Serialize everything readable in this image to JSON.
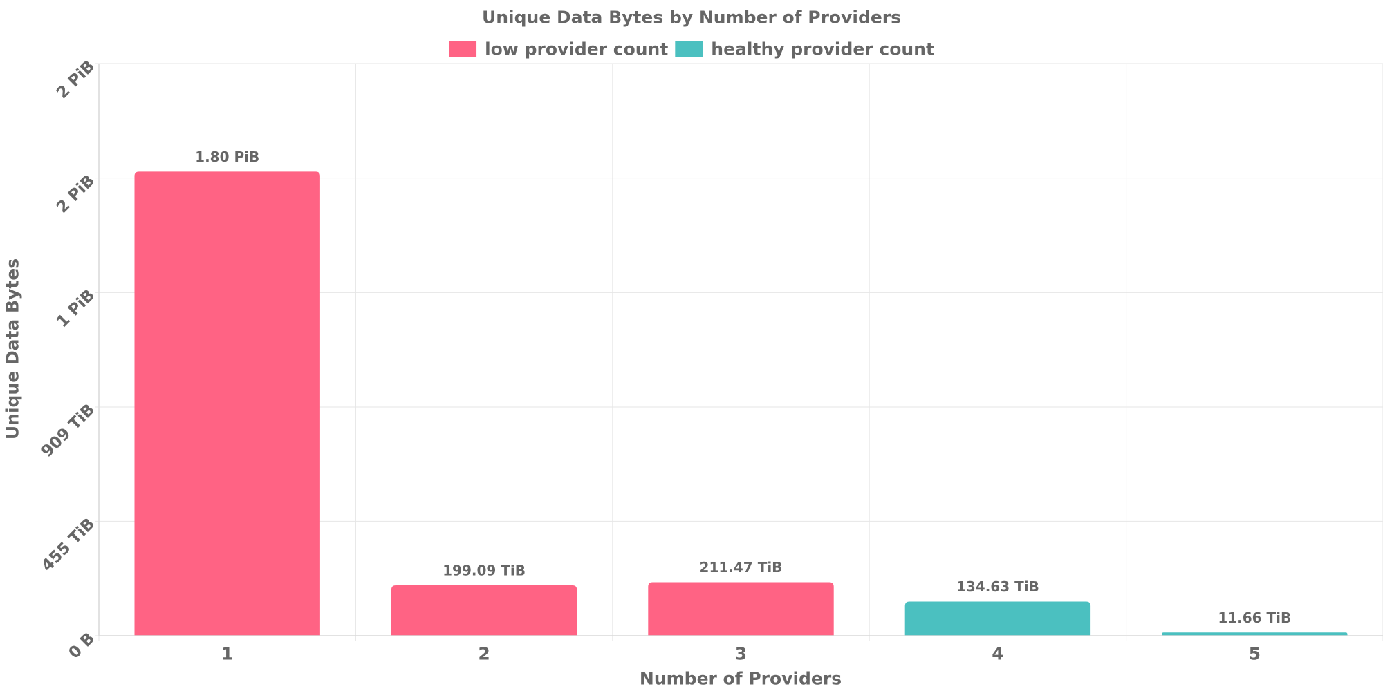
{
  "chart_data": {
    "type": "bar",
    "title": "Unique Data Bytes by Number of Providers",
    "xlabel": "Number of Providers",
    "ylabel": "Unique Data Bytes",
    "categories": [
      "1",
      "2",
      "3",
      "4",
      "5"
    ],
    "values_tib": [
      1843.2,
      199.09,
      211.47,
      134.63,
      11.66
    ],
    "data_labels": [
      "1.80 PiB",
      "199.09 TiB",
      "211.47 TiB",
      "134.63 TiB",
      "11.66 TiB"
    ],
    "bar_series": [
      "low provider count",
      "low provider count",
      "low provider count",
      "healthy provider count",
      "healthy provider count"
    ],
    "series": [
      {
        "name": "low provider count",
        "color": "#ff6384"
      },
      {
        "name": "healthy provider count",
        "color": "#4bc0c0"
      }
    ],
    "y_ticks": [
      {
        "value_tib": 0,
        "label": "0 B"
      },
      {
        "value_tib": 455,
        "label": "455 TiB"
      },
      {
        "value_tib": 909,
        "label": "909 TiB"
      },
      {
        "value_tib": 1364,
        "label": "1 PiB"
      },
      {
        "value_tib": 1819,
        "label": "2 PiB"
      },
      {
        "value_tib": 2274,
        "label": "2 PiB"
      }
    ],
    "ylim_tib": [
      0,
      2274
    ],
    "grid": true,
    "legend_position": "top"
  }
}
